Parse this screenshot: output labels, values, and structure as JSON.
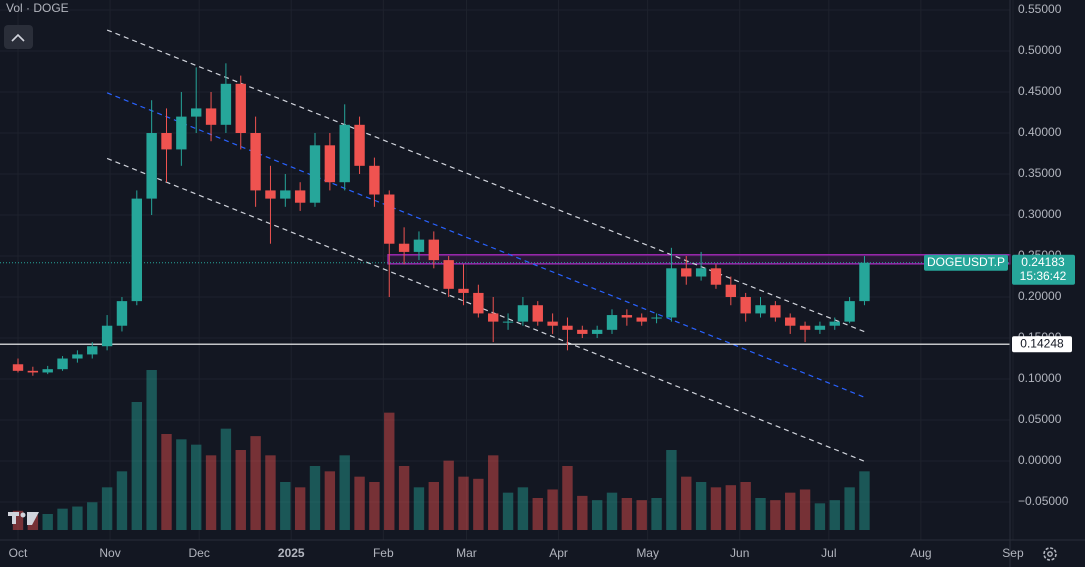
{
  "chart_data": {
    "type": "candlestick",
    "title": "Vol · DOGE",
    "symbol": "DOGEUSDT.P",
    "last_price": 0.24183,
    "countdown": "15:36:42",
    "level_line": 0.14248,
    "up_color": "#26a69a",
    "down_color": "#ef5350",
    "grid": true,
    "xlim": [
      -6.06,
      334
    ],
    "ylim": [
      -0.0963,
      0.5622
    ],
    "xticks": [
      {
        "value": 0,
        "label": "Oct"
      },
      {
        "value": 31,
        "label": "Nov"
      },
      {
        "value": 61,
        "label": "Dec"
      },
      {
        "value": 92,
        "label": "2025"
      },
      {
        "value": 123,
        "label": "Feb"
      },
      {
        "value": 151,
        "label": "Mar"
      },
      {
        "value": 182,
        "label": "Apr"
      },
      {
        "value": 212,
        "label": "May"
      },
      {
        "value": 243,
        "label": "Jun"
      },
      {
        "value": 273,
        "label": "Jul"
      },
      {
        "value": 304,
        "label": "Aug"
      },
      {
        "value": 335,
        "label": "Sep"
      }
    ],
    "yticks": [
      {
        "value": 0.55,
        "label": "0.55000"
      },
      {
        "value": 0.5,
        "label": "0.50000"
      },
      {
        "value": 0.45,
        "label": "0.45000"
      },
      {
        "value": 0.4,
        "label": "0.40000"
      },
      {
        "value": 0.35,
        "label": "0.35000"
      },
      {
        "value": 0.3,
        "label": "0.30000"
      },
      {
        "value": 0.25,
        "label": "0.25000"
      },
      {
        "value": 0.2,
        "label": "0.20000"
      },
      {
        "value": 0.15,
        "label": "0.15000"
      },
      {
        "value": 0.1,
        "label": "0.10000"
      },
      {
        "value": 0.05,
        "label": "0.05000"
      },
      {
        "value": 0,
        "label": "0.00000"
      },
      {
        "value": -0.05,
        "label": "−0.05000"
      }
    ],
    "x": [
      0,
      5,
      10,
      15,
      20,
      25,
      30,
      35,
      40,
      45,
      50,
      55,
      60,
      65,
      70,
      75,
      80,
      85,
      90,
      95,
      100,
      105,
      110,
      115,
      120,
      125,
      130,
      135,
      140,
      145,
      150,
      155,
      160,
      165,
      170,
      175,
      180,
      185,
      190,
      195,
      200,
      205,
      210,
      215,
      220,
      225,
      230,
      235,
      240,
      245,
      250,
      255,
      260,
      265,
      270,
      275,
      280,
      285
    ],
    "open": [
      0.118,
      0.11,
      0.108,
      0.112,
      0.125,
      0.13,
      0.14,
      0.165,
      0.195,
      0.32,
      0.4,
      0.38,
      0.42,
      0.43,
      0.41,
      0.46,
      0.4,
      0.33,
      0.32,
      0.33,
      0.315,
      0.385,
      0.34,
      0.41,
      0.36,
      0.325,
      0.265,
      0.255,
      0.27,
      0.245,
      0.21,
      0.205,
      0.18,
      0.17,
      0.17,
      0.19,
      0.17,
      0.165,
      0.16,
      0.155,
      0.16,
      0.178,
      0.175,
      0.175,
      0.175,
      0.235,
      0.225,
      0.235,
      0.215,
      0.2,
      0.18,
      0.19,
      0.175,
      0.165,
      0.16,
      0.165,
      0.17,
      0.195
    ],
    "high": [
      0.125,
      0.115,
      0.116,
      0.128,
      0.135,
      0.145,
      0.178,
      0.2,
      0.33,
      0.44,
      0.43,
      0.45,
      0.48,
      0.45,
      0.485,
      0.47,
      0.42,
      0.36,
      0.35,
      0.34,
      0.4,
      0.4,
      0.435,
      0.42,
      0.37,
      0.33,
      0.285,
      0.28,
      0.28,
      0.25,
      0.24,
      0.215,
      0.2,
      0.18,
      0.2,
      0.195,
      0.18,
      0.175,
      0.165,
      0.165,
      0.185,
      0.185,
      0.18,
      0.18,
      0.26,
      0.25,
      0.255,
      0.24,
      0.225,
      0.205,
      0.2,
      0.195,
      0.18,
      0.17,
      0.17,
      0.175,
      0.2,
      0.25
    ],
    "low": [
      0.108,
      0.104,
      0.106,
      0.11,
      0.12,
      0.125,
      0.135,
      0.158,
      0.19,
      0.3,
      0.34,
      0.36,
      0.4,
      0.39,
      0.4,
      0.38,
      0.31,
      0.265,
      0.31,
      0.305,
      0.31,
      0.33,
      0.33,
      0.35,
      0.31,
      0.2,
      0.24,
      0.245,
      0.235,
      0.2,
      0.19,
      0.175,
      0.145,
      0.16,
      0.165,
      0.165,
      0.155,
      0.135,
      0.15,
      0.15,
      0.155,
      0.165,
      0.165,
      0.168,
      0.17,
      0.215,
      0.22,
      0.21,
      0.19,
      0.17,
      0.175,
      0.17,
      0.155,
      0.145,
      0.155,
      0.16,
      0.168,
      0.19
    ],
    "close": [
      0.11,
      0.108,
      0.112,
      0.125,
      0.13,
      0.14,
      0.165,
      0.195,
      0.32,
      0.4,
      0.38,
      0.42,
      0.43,
      0.41,
      0.46,
      0.4,
      0.33,
      0.32,
      0.33,
      0.315,
      0.385,
      0.34,
      0.41,
      0.36,
      0.325,
      0.265,
      0.255,
      0.27,
      0.245,
      0.21,
      0.205,
      0.18,
      0.17,
      0.17,
      0.19,
      0.17,
      0.165,
      0.16,
      0.155,
      0.16,
      0.178,
      0.175,
      0.17,
      0.175,
      0.235,
      0.225,
      0.235,
      0.215,
      0.2,
      0.18,
      0.19,
      0.175,
      0.165,
      0.16,
      0.165,
      0.17,
      0.195,
      0.24183
    ],
    "volume": [
      18,
      14,
      15,
      20,
      22,
      26,
      40,
      55,
      120,
      150,
      90,
      85,
      80,
      70,
      95,
      75,
      88,
      70,
      45,
      40,
      60,
      55,
      70,
      50,
      45,
      110,
      60,
      40,
      45,
      65,
      50,
      48,
      70,
      35,
      40,
      30,
      38,
      60,
      32,
      28,
      35,
      30,
      28,
      30,
      75,
      50,
      45,
      40,
      42,
      45,
      30,
      28,
      35,
      38,
      25,
      28,
      40,
      55
    ],
    "channel_lines": [
      {
        "color": "#d1d4dc",
        "points": [
          [
            30,
            0.5256
          ],
          [
            285.5,
            0.157
          ]
        ]
      },
      {
        "color": "#2962ff",
        "points": [
          [
            30,
            0.449
          ],
          [
            285.5,
            0.077
          ]
        ]
      },
      {
        "color": "#d1d4dc",
        "points": [
          [
            30,
            0.369
          ],
          [
            285.5,
            -0.001
          ]
        ]
      }
    ],
    "zone": {
      "x0": 124.6,
      "y": [
        0.2405,
        0.2515
      ],
      "color": "#9c27b0"
    }
  }
}
